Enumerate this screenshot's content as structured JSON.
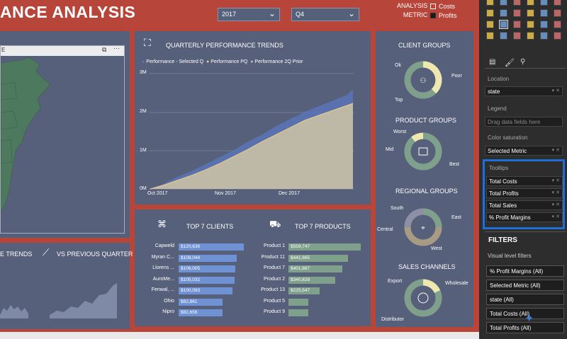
{
  "header": {
    "title": "ANCE ANALYSIS",
    "year_slicer": "2017",
    "quarter_slicer": "Q4",
    "legend_titles": [
      "ANALYSIS",
      "METRIC"
    ],
    "legend_items": [
      {
        "label": "Costs",
        "filled": false
      },
      {
        "label": "Profits",
        "filled": true
      }
    ]
  },
  "map": {
    "frame_label": "E"
  },
  "trends": {
    "title": "QUARTERLY PERFORMANCE TRENDS",
    "legend": [
      "Performance - Selected Q",
      "Performance PQ",
      "Performance 2Q Prior"
    ],
    "y_ticks": [
      "3M",
      "2M",
      "1M",
      "0M"
    ],
    "x_ticks": [
      "Oct 2017",
      "Nov 2017",
      "Dec 2017"
    ]
  },
  "bottom_left": {
    "left_title": "E TRENDS",
    "right_title": "VS PREVIOUS QUARTER"
  },
  "clients": {
    "title": "TOP 7 CLIENTS",
    "rows": [
      {
        "name": "Capweld",
        "value": "$120,636"
      },
      {
        "name": "Myran C...",
        "value": "$108,044"
      },
      {
        "name": "Llorens ...",
        "value": "$106,005"
      },
      {
        "name": "AuroMe...",
        "value": "$105,032"
      },
      {
        "name": "Fenwal, ...",
        "value": "$100,093"
      },
      {
        "name": "Ohio",
        "value": "$82,861"
      },
      {
        "name": "Nipro",
        "value": "$82,656"
      }
    ]
  },
  "products": {
    "title": "TOP 7 PRODUCTS",
    "rows": [
      {
        "name": "Product 1",
        "value": "$559,747"
      },
      {
        "name": "Product 11",
        "value": "$441,865"
      },
      {
        "name": "Product 7",
        "value": "$401,887"
      },
      {
        "name": "Product 2",
        "value": "$340,828"
      },
      {
        "name": "Product 13",
        "value": "$225,547"
      },
      {
        "name": "Product 5",
        "value": ""
      },
      {
        "name": "Product 9",
        "value": ""
      }
    ]
  },
  "client_groups": {
    "title": "CLIENT GROUPS",
    "labels": [
      "Ok",
      "Poor",
      "Top"
    ]
  },
  "product_groups": {
    "title": "PRODUCT GROUPS",
    "labels": [
      "Worst",
      "Mid",
      "Best"
    ]
  },
  "regional_groups": {
    "title": "REGIONAL GROUPS",
    "labels": [
      "South",
      "East",
      "Central",
      "West"
    ]
  },
  "sales_channels": {
    "title": "SALES CHANNELS",
    "labels": [
      "Export",
      "Wholesale",
      "Distributor"
    ]
  },
  "pane": {
    "location_label": "Location",
    "location_value": "state",
    "legend_label": "Legend",
    "legend_placeholder": "Drag data fields here",
    "color_label": "Color saturation",
    "color_value": "Selected Metric",
    "tooltips_label": "Tooltips",
    "tooltips": [
      "Total Costs",
      "Total Profits",
      "Total Sales",
      "% Profit Margins"
    ],
    "filters_title": "FILTERS",
    "visual_filters_label": "Visual level filters",
    "filters": [
      "% Profit Margins (All)",
      "Selected Metric (All)",
      "state (All)",
      "Total Costs (All)",
      "Total Profits (All)"
    ],
    "highlight_color": "#1f6fd6"
  },
  "colors": {
    "background": "#b7453a",
    "panel": "#56607a",
    "selected_q": "#5b74b8",
    "pq": "#e6c98c",
    "prior_2q": "#b8bcc9",
    "client_bar": "#6f92d4",
    "product_bar": "#7fa08a"
  }
}
